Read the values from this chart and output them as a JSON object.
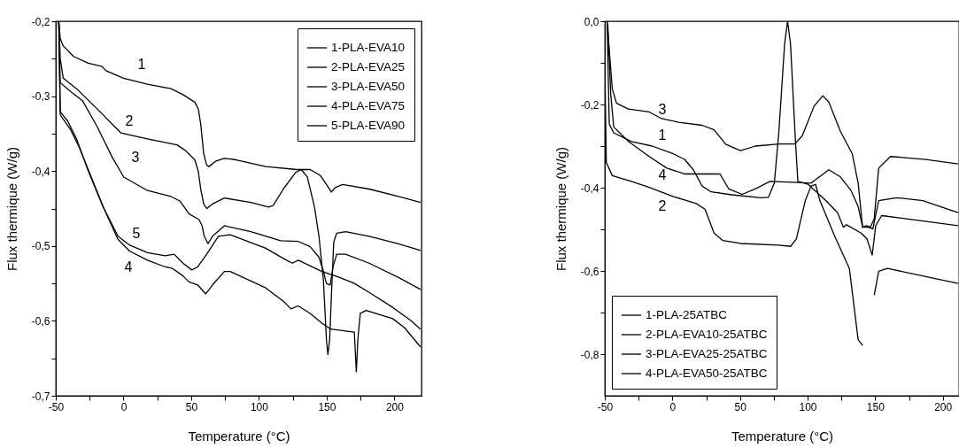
{
  "chart_data": [
    {
      "type": "line",
      "xlabel": "Temperature (°C)",
      "ylabel": "Flux thermique (W/g)",
      "xlim": [
        -50,
        220
      ],
      "ylim": [
        -0.7,
        -0.2
      ],
      "xticks": [
        -50,
        {
          "value": -25,
          "label": null
        },
        0,
        {
          "value": 25,
          "label": null
        },
        50,
        {
          "value": 75,
          "label": null
        },
        100,
        {
          "value": 125,
          "label": null
        },
        150,
        {
          "value": 175,
          "label": null
        },
        200
      ],
      "yticks": [
        {
          "value": -0.7,
          "label": "-0,7"
        },
        {
          "value": -0.65,
          "label": null
        },
        {
          "value": -0.6,
          "label": "-0,6"
        },
        {
          "value": -0.55,
          "label": null
        },
        {
          "value": -0.5,
          "label": "-0,5"
        },
        {
          "value": -0.45,
          "label": null
        },
        {
          "value": -0.4,
          "label": "-0,4"
        },
        {
          "value": -0.35,
          "label": null
        },
        {
          "value": -0.3,
          "label": "-0,3"
        },
        {
          "value": -0.25,
          "label": null
        },
        {
          "value": -0.2,
          "label": "-0,2"
        }
      ],
      "legend": "top right",
      "series": [
        {
          "name": "1-PLA-EVA10",
          "color": "#000000",
          "x": [
            -47.8,
            -46.7,
            -44.5,
            -36.9,
            -26,
            -16.2,
            -12.9,
            0,
            17.7,
            35,
            43.9,
            52.6,
            55.2,
            57,
            59.2,
            61.4,
            63.1,
            67.9,
            74.5,
            83.2,
            105,
            128,
            137.8,
            145.4,
            149.8,
            153.5,
            156.3,
            161.7,
            181.3,
            203,
            219.3
          ],
          "values": [
            -0.2,
            -0.223,
            -0.233,
            -0.247,
            -0.256,
            -0.26,
            -0.266,
            -0.276,
            -0.284,
            -0.29,
            -0.298,
            -0.308,
            -0.317,
            -0.337,
            -0.377,
            -0.392,
            -0.394,
            -0.387,
            -0.383,
            -0.385,
            -0.394,
            -0.398,
            -0.398,
            -0.406,
            -0.418,
            -0.428,
            -0.422,
            -0.418,
            -0.424,
            -0.434,
            -0.442
          ]
        },
        {
          "name": "2-PLA-EVA25",
          "color": "#000000",
          "x": [
            -47.8,
            -46.7,
            -44.5,
            -34.7,
            -17.2,
            -12.9,
            -2,
            17.7,
            39.5,
            46,
            52.6,
            55.2,
            57,
            59.2,
            61.4,
            65.7,
            74.5,
            94,
            107,
            110.5,
            118,
            127,
            131.3,
            135.7,
            141,
            144.3,
            147.6,
            149.8,
            150.9,
            152.2,
            153.5,
            155.2,
            157.4,
            163.9,
            181.3,
            203,
            219.3
          ],
          "values": [
            -0.2,
            -0.25,
            -0.276,
            -0.29,
            -0.321,
            -0.329,
            -0.349,
            -0.357,
            -0.365,
            -0.373,
            -0.385,
            -0.4,
            -0.424,
            -0.444,
            -0.45,
            -0.444,
            -0.436,
            -0.442,
            -0.448,
            -0.446,
            -0.424,
            -0.402,
            -0.398,
            -0.408,
            -0.448,
            -0.487,
            -0.546,
            -0.625,
            -0.645,
            -0.625,
            -0.566,
            -0.495,
            -0.483,
            -0.481,
            -0.487,
            -0.497,
            -0.506
          ]
        },
        {
          "name": "3-PLA-EVA50",
          "color": "#000000",
          "x": [
            -47.8,
            -46.7,
            -39,
            -30.3,
            -19.4,
            -8.5,
            0.2,
            17.7,
            35,
            41.7,
            48.3,
            55.9,
            58,
            59.6,
            62.4,
            65.7,
            74.5,
            94,
            116,
            129.1,
            137.8,
            144.3,
            147.6,
            149.8,
            152.6,
            154.8,
            157.4,
            163.9,
            181.3,
            203,
            219.3
          ],
          "values": [
            -0.2,
            -0.282,
            -0.294,
            -0.306,
            -0.341,
            -0.381,
            -0.408,
            -0.426,
            -0.434,
            -0.44,
            -0.457,
            -0.465,
            -0.473,
            -0.487,
            -0.497,
            -0.487,
            -0.473,
            -0.481,
            -0.493,
            -0.494,
            -0.501,
            -0.515,
            -0.534,
            -0.55,
            -0.552,
            -0.527,
            -0.511,
            -0.511,
            -0.523,
            -0.542,
            -0.558
          ]
        },
        {
          "name": "4-PLA-EVA75",
          "color": "#000000",
          "x": [
            -47.8,
            -46.7,
            -39,
            -32.5,
            -23.8,
            -15,
            -4.1,
            4.6,
            17.7,
            30.8,
            36.2,
            43.9,
            48.3,
            54.8,
            60.7,
            65.7,
            74.5,
            78.8,
            105,
            118.2,
            123.6,
            129,
            137.8,
            146.5,
            153,
            170.4,
            171.9,
            173,
            174.8,
            179.1,
            198.7,
            207.4,
            219.3
          ],
          "values": [
            -0.2,
            -0.325,
            -0.345,
            -0.369,
            -0.408,
            -0.448,
            -0.491,
            -0.507,
            -0.519,
            -0.528,
            -0.53,
            -0.54,
            -0.548,
            -0.552,
            -0.564,
            -0.552,
            -0.534,
            -0.534,
            -0.556,
            -0.574,
            -0.584,
            -0.58,
            -0.59,
            -0.603,
            -0.611,
            -0.615,
            -0.668,
            -0.625,
            -0.59,
            -0.586,
            -0.597,
            -0.609,
            -0.635
          ]
        },
        {
          "name": "5-PLA-EVA90",
          "color": "#000000",
          "x": [
            -47.8,
            -46.7,
            -41.3,
            -34.7,
            -26,
            -15,
            -4.1,
            4.6,
            17.7,
            30.8,
            37.3,
            43.9,
            50.4,
            54.8,
            61.4,
            70.1,
            78.8,
            105,
            120.3,
            124.7,
            129.1,
            146.5,
            159.6,
            170.4,
            181.3,
            198.7,
            211.7,
            219.3
          ],
          "values": [
            -0.2,
            -0.321,
            -0.333,
            -0.357,
            -0.4,
            -0.448,
            -0.487,
            -0.499,
            -0.509,
            -0.513,
            -0.511,
            -0.523,
            -0.532,
            -0.528,
            -0.511,
            -0.487,
            -0.485,
            -0.503,
            -0.519,
            -0.523,
            -0.519,
            -0.534,
            -0.542,
            -0.55,
            -0.562,
            -0.582,
            -0.599,
            -0.611
          ]
        }
      ],
      "annotations": [
        "1",
        "2",
        "3",
        "5",
        "4"
      ]
    },
    {
      "type": "line",
      "xlabel": "Temperature (°C)",
      "ylabel": "Flux thermique (W/g)",
      "xlim": [
        -50,
        212
      ],
      "ylim": [
        -0.9,
        0
      ],
      "xticks": [
        -50,
        {
          "value": -25,
          "label": null
        },
        0,
        {
          "value": 25,
          "label": null
        },
        50,
        {
          "value": 75,
          "label": null
        },
        100,
        {
          "value": 125,
          "label": null
        },
        150,
        {
          "value": 175,
          "label": null
        },
        200
      ],
      "yticks": [
        {
          "value": -0.8,
          "label": "-0,8"
        },
        {
          "value": -0.7,
          "label": null
        },
        {
          "value": -0.6,
          "label": "-0,6"
        },
        {
          "value": -0.5,
          "label": null
        },
        {
          "value": -0.4,
          "label": "-0,4"
        },
        {
          "value": -0.3,
          "label": null
        },
        {
          "value": -0.2,
          "label": "-0,2"
        },
        {
          "value": -0.1,
          "label": null
        },
        {
          "value": 0,
          "label": "0,0"
        }
      ],
      "legend": "bottom left",
      "series": [
        {
          "name": "1-PLA-25ATBC",
          "color": "#000000",
          "x": [
            -48.3,
            -46.7,
            -43.4,
            -30.3,
            -15,
            0.2,
            9,
            15.5,
            22,
            28.6,
            43.9,
            65.7,
            71.1,
            75.4,
            78.7,
            83,
            85.2,
            87.4,
            90.7,
            92.8,
            100.4,
            113.5,
            122.2,
            126.5,
            128.7,
            132,
            139.6,
            143.9,
            147.8,
            150.4,
            154.8,
            211.3
          ],
          "values": [
            0,
            -0.247,
            -0.268,
            -0.289,
            -0.3,
            -0.318,
            -0.332,
            -0.357,
            -0.396,
            -0.41,
            -0.417,
            -0.424,
            -0.423,
            -0.389,
            -0.268,
            -0.055,
            0,
            -0.055,
            -0.268,
            -0.385,
            -0.392,
            -0.431,
            -0.46,
            -0.495,
            -0.489,
            -0.495,
            -0.509,
            -0.523,
            -0.562,
            -0.491,
            -0.467,
            -0.491
          ]
        },
        {
          "name": "2-PLA-EVA10-25ATBC",
          "color": "#000000",
          "x": [
            -50,
            -48.9,
            -44.5,
            -30.3,
            -17.2,
            0.4,
            17.7,
            24.2,
            30.8,
            37.3,
            50.4,
            78.7,
            87.4,
            91.7,
            98.3,
            102.6,
            105.9,
            109.1,
            120,
            130.9,
            137.4,
            140.7,
            143.9,
            146.5,
            149.3,
            152.6,
            159.1,
            211.3
          ],
          "values": [
            -0.1,
            -0.339,
            -0.371,
            -0.385,
            -0.399,
            -0.421,
            -0.438,
            -0.452,
            -0.509,
            -0.527,
            -0.534,
            -0.538,
            -0.541,
            -0.523,
            -0.431,
            -0.396,
            -0.392,
            -0.431,
            -0.516,
            -0.594,
            -0.765,
            -0.779,
            null,
            null,
            -0.658,
            -0.601,
            -0.594,
            -0.63
          ]
        },
        {
          "name": "3-PLA-EVA25-25ATBC",
          "color": "#000000",
          "x": [
            -48.3,
            -44.5,
            -41.3,
            -32.5,
            -17.2,
            -8.5,
            4.6,
            22,
            30.8,
            39.6,
            50.4,
            61.3,
            78.7,
            90.6,
            96.1,
            104.8,
            111.3,
            115.7,
            124.3,
            133,
            137.4,
            140.7,
            143.9,
            146.5,
            149.3,
            152.6,
            161.3,
            187.4,
            211.3
          ],
          "values": [
            0,
            -0.162,
            -0.197,
            -0.211,
            -0.218,
            -0.233,
            -0.243,
            -0.25,
            -0.261,
            -0.296,
            -0.311,
            -0.3,
            -0.295,
            -0.295,
            -0.275,
            -0.204,
            -0.179,
            -0.194,
            -0.265,
            -0.318,
            -0.389,
            -0.495,
            -0.491,
            -0.495,
            -0.474,
            -0.353,
            -0.325,
            -0.332,
            -0.343
          ]
        },
        {
          "name": "4-PLA-EVA50-25ATBC",
          "color": "#000000",
          "x": [
            -47.8,
            -45.6,
            -43.4,
            -32.5,
            -17.2,
            -4.1,
            9,
            35.2,
            41.7,
            51.5,
            61.3,
            72.2,
            89.6,
            102.6,
            115.7,
            124.3,
            132,
            137.4,
            140.7,
            145,
            148.3,
            152.6,
            165.7,
            185.2,
            211.3
          ],
          "values": [
            -0.006,
            -0.176,
            -0.254,
            -0.289,
            -0.325,
            -0.353,
            -0.367,
            -0.367,
            -0.403,
            -0.416,
            -0.403,
            -0.385,
            -0.387,
            -0.389,
            -0.357,
            -0.374,
            -0.406,
            -0.445,
            -0.495,
            -0.495,
            -0.499,
            -0.431,
            -0.424,
            -0.431,
            -0.46
          ]
        }
      ],
      "annotations": [
        "3",
        "1",
        "4",
        "2"
      ]
    }
  ]
}
